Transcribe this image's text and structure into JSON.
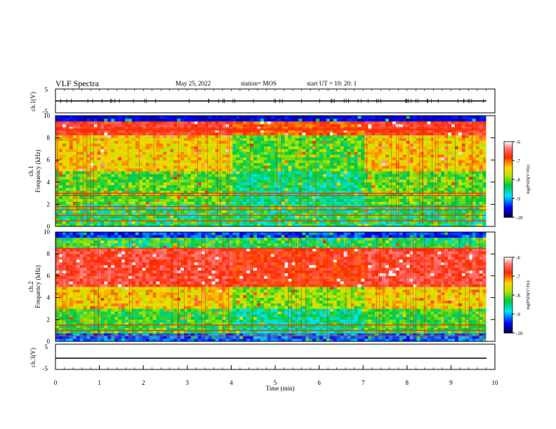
{
  "header": {
    "title": "VLF Spectra",
    "date": "May 25, 2022",
    "station": "station= MOS",
    "start": "start  UT =   10: 20: 1"
  },
  "panels": {
    "ch1": {
      "ylabel": "ch.1(V)",
      "ticks": [
        "5",
        "-5"
      ]
    },
    "ch1_spec": {
      "ylabel_1": "ch.1",
      "ylabel_2": "Frequency  (kHz)",
      "ticks": [
        "0",
        "2",
        "4",
        "6",
        "8",
        "10"
      ]
    },
    "ch2_spec": {
      "ylabel_1": "ch.2",
      "ylabel_2": "Frequency  (kHz)",
      "ticks": [
        "0",
        "2",
        "4",
        "6",
        "8",
        "10"
      ]
    },
    "ch3": {
      "ylabel": "ch.3(V)",
      "ticks": [
        "5",
        "-5"
      ]
    }
  },
  "colorbar": {
    "label": "log(PSD)(V²/Hz)",
    "ticks": [
      "-6",
      "-7",
      "-8",
      "-9",
      "-10"
    ],
    "colors": [
      "#ffffff",
      "#ff0000",
      "#ffd700",
      "#00c000",
      "#00ffff",
      "#0000ff",
      "#000000"
    ]
  },
  "chart_data": [
    {
      "type": "line",
      "name": "ch.1(V)",
      "ylim": [
        -5,
        5
      ],
      "xlim": [
        0,
        10
      ],
      "x_unit": "min",
      "description_values": {
        "mean_y": 0
      }
    },
    {
      "type": "heatmap",
      "name": "ch.1",
      "xlim": [
        0,
        10
      ],
      "ylim": [
        0,
        10
      ],
      "ylabel": "Frequency  (kHz)",
      "x_data_end": 9.8,
      "zlim": [
        -10,
        -6
      ],
      "strong_bands_khz": [
        0.5,
        1.0,
        1.5,
        1.8,
        2.8,
        3.0,
        8.7,
        8.8
      ],
      "quiet_interval_min": [
        4.0,
        7.0
      ]
    },
    {
      "type": "heatmap",
      "name": "ch.2",
      "xlim": [
        0,
        10
      ],
      "ylim": [
        0,
        10
      ],
      "ylabel": "Frequency  (kHz)",
      "x_data_end": 9.8,
      "zlim": [
        -10,
        -6
      ],
      "strong_bands_khz": [
        0.5,
        1.0,
        1.5,
        8.5
      ],
      "quiet_interval_min": [
        4.0,
        7.0
      ]
    },
    {
      "type": "line",
      "name": "ch.3(V)",
      "ylim": [
        -5,
        5
      ],
      "xlim": [
        0,
        10
      ],
      "x_unit": "min",
      "description_values": {
        "mean_y": 0
      }
    }
  ],
  "xaxis": {
    "label": "Time  (min)",
    "ticks": [
      "0",
      "1",
      "2",
      "3",
      "4",
      "5",
      "6",
      "7",
      "8",
      "9",
      "10"
    ]
  }
}
